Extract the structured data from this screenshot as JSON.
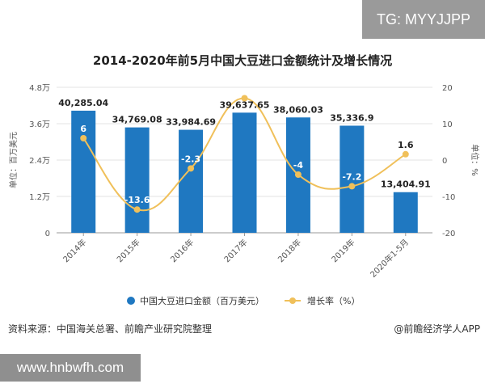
{
  "watermark_tag": "TG: MYYJJPP",
  "website": "www.hnbwfh.com",
  "source": "资料来源：中国海关总署、前瞻产业研究院整理",
  "brand": "@前瞻经济学人APP",
  "colors": {
    "bar": "#1f78c1",
    "line": "#f0c05a",
    "grid": "#e3e3e3"
  },
  "chart_data": {
    "type": "bar",
    "title": "2014-2020年前5月中国大豆进口金额统计及增长情况",
    "categories": [
      "2014年",
      "2015年",
      "2016年",
      "2017年",
      "2018年",
      "2019年",
      "2020年1-5月"
    ],
    "series": [
      {
        "name": "中国大豆进口金额（百万美元）",
        "type": "bar",
        "values": [
          40285.04,
          34769.08,
          33984.69,
          39637.65,
          38060.03,
          35336.9,
          13404.91
        ],
        "labels": [
          "40,285.04",
          "34,769.08",
          "33,984.69",
          "39,637.65",
          "38,060.03",
          "35,336.9",
          "13,404.91"
        ]
      },
      {
        "name": "增长率（%）",
        "type": "line",
        "axis": "right",
        "values": [
          6,
          -13.6,
          -2.3,
          17,
          -4,
          -7.2,
          1.6
        ],
        "labels": [
          "6",
          "-13.6",
          "-2.3",
          "",
          "-4",
          "-7.2",
          "1.6"
        ]
      }
    ],
    "ylabel_left": "单位：百万美元",
    "ylabel_right": "单位：%",
    "ylim_left": [
      0,
      48000
    ],
    "ylim_right": [
      -20,
      20
    ],
    "yticks_left": [
      "0",
      "1.2万",
      "2.4万",
      "3.6万",
      "4.8万"
    ],
    "yticks_right": [
      "-20",
      "-10",
      "0",
      "10",
      "20"
    ],
    "grid": true,
    "legend_position": "bottom"
  }
}
